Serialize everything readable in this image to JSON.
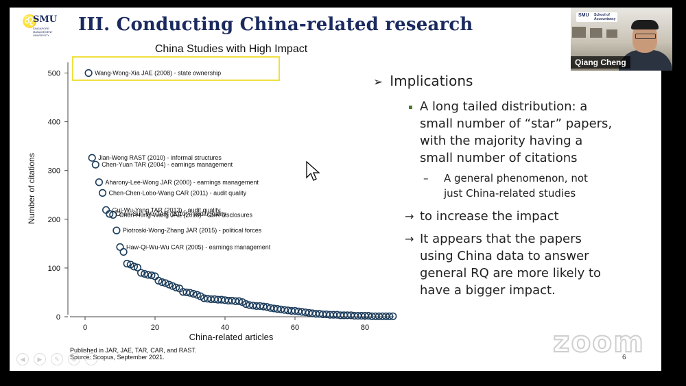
{
  "slide": {
    "logo_name": "SMU",
    "logo_sub": "SINGAPORE MANAGEMENT UNIVERSITY",
    "title": "III. Conducting China-related research",
    "page_number": "6"
  },
  "chart_data": {
    "type": "scatter",
    "title": "China Studies with High Impact",
    "xlabel": "China-related articles",
    "ylabel": "Number of citations",
    "xlim": [
      -2,
      90
    ],
    "ylim": [
      0,
      520
    ],
    "xticks": [
      0,
      20,
      40,
      60,
      80
    ],
    "yticks": [
      0,
      100,
      200,
      300,
      400,
      500
    ],
    "grid": false,
    "highlight_box_around": "Wang-Wong-Xia JAE (2008) - state ownership",
    "labeled_points": [
      {
        "rank": 1,
        "citations": 500,
        "label": "Wang-Wong-Xia JAE (2008) - state ownership"
      },
      {
        "rank": 2,
        "citations": 326,
        "label": "Jian-Wong RAST (2010) - informal structures"
      },
      {
        "rank": 3,
        "citations": 312,
        "label": "Chen-Yuan TAR (2004) - earnings management"
      },
      {
        "rank": 4,
        "citations": 276,
        "label": "Aharony-Lee-Wong JAR (2000) - earnings management"
      },
      {
        "rank": 5,
        "citations": 254,
        "label": "Chen-Chen-Lobo-Wang CAR (2011) - audit quality"
      },
      {
        "rank": 6,
        "citations": 219,
        "label": "Gul-Wu-Yang TAR (2013) - audit quality"
      },
      {
        "rank": 7,
        "citations": 211,
        "label": "Chen-Sun-Wu TAR (2010) - audit quality"
      },
      {
        "rank": 8,
        "citations": 209,
        "label": "Chen-Hung-Wang JAE (2018) - CSR disclosures"
      },
      {
        "rank": 9,
        "citations": 177,
        "label": "Piotroski-Wong-Zhang JAR (2015) - political forces"
      },
      {
        "rank": 10,
        "citations": 143,
        "label": "Haw-Qi-Wu-Wu CAR (2005) - earnings management"
      }
    ],
    "other_points": [
      [
        11,
        133
      ],
      [
        12,
        109
      ],
      [
        13,
        107
      ],
      [
        14,
        103
      ],
      [
        15,
        101
      ],
      [
        16,
        90
      ],
      [
        17,
        88
      ],
      [
        18,
        86
      ],
      [
        19,
        85
      ],
      [
        20,
        83
      ],
      [
        21,
        74
      ],
      [
        22,
        71
      ],
      [
        23,
        69
      ],
      [
        24,
        66
      ],
      [
        25,
        63
      ],
      [
        26,
        60
      ],
      [
        27,
        58
      ],
      [
        28,
        51
      ],
      [
        29,
        50
      ],
      [
        30,
        49
      ],
      [
        31,
        47
      ],
      [
        32,
        45
      ],
      [
        33,
        42
      ],
      [
        34,
        38
      ],
      [
        35,
        37
      ],
      [
        36,
        36
      ],
      [
        37,
        36
      ],
      [
        38,
        35
      ],
      [
        39,
        35
      ],
      [
        40,
        34
      ],
      [
        41,
        33
      ],
      [
        42,
        33
      ],
      [
        43,
        32
      ],
      [
        44,
        32
      ],
      [
        45,
        30
      ],
      [
        46,
        26
      ],
      [
        47,
        24
      ],
      [
        48,
        23
      ],
      [
        49,
        22
      ],
      [
        50,
        22
      ],
      [
        51,
        21
      ],
      [
        52,
        20
      ],
      [
        53,
        18
      ],
      [
        54,
        17
      ],
      [
        55,
        16
      ],
      [
        56,
        15
      ],
      [
        57,
        14
      ],
      [
        58,
        13
      ],
      [
        59,
        12
      ],
      [
        60,
        12
      ],
      [
        61,
        11
      ],
      [
        62,
        10
      ],
      [
        63,
        9
      ],
      [
        64,
        8
      ],
      [
        65,
        7
      ],
      [
        66,
        6
      ],
      [
        67,
        6
      ],
      [
        68,
        5
      ],
      [
        69,
        5
      ],
      [
        70,
        4
      ],
      [
        71,
        4
      ],
      [
        72,
        4
      ],
      [
        73,
        3
      ],
      [
        74,
        3
      ],
      [
        75,
        3
      ],
      [
        76,
        3
      ],
      [
        77,
        2
      ],
      [
        78,
        2
      ],
      [
        79,
        2
      ],
      [
        80,
        2
      ],
      [
        81,
        2
      ],
      [
        82,
        1
      ],
      [
        83,
        1
      ],
      [
        84,
        1
      ],
      [
        85,
        1
      ],
      [
        86,
        1
      ],
      [
        87,
        1
      ],
      [
        88,
        1
      ]
    ],
    "footnote_1": "Published in JAR, JAE, TAR, CAR, and RAST.",
    "footnote_2": "Source: Scopus, September 2021.",
    "colors": {
      "marker": "#1d3d5c",
      "highlight": "#f0e040",
      "text": "#111111"
    }
  },
  "bullets": {
    "heading": "Implications",
    "items": [
      {
        "text_lines": [
          "A long tailed distribution: a",
          "small number of “star” papers,",
          "with the majority having a",
          "small number of citations"
        ]
      },
      {
        "sub_lines": [
          "A general phenomenon, not",
          "just China-related studies"
        ]
      }
    ],
    "arrows": [
      {
        "lines": [
          "to increase the impact"
        ]
      },
      {
        "lines": [
          "It appears that the papers",
          "using China data to answer",
          "general RQ are more likely to",
          "have a bigger impact."
        ]
      }
    ],
    "colors": {
      "square": "#4a7a2c"
    }
  },
  "video": {
    "participant_name": "Qiang Cheng",
    "logo_text": "SMU",
    "logo_school": "School of Accountancy"
  },
  "watermark": {
    "text": "zoom"
  }
}
